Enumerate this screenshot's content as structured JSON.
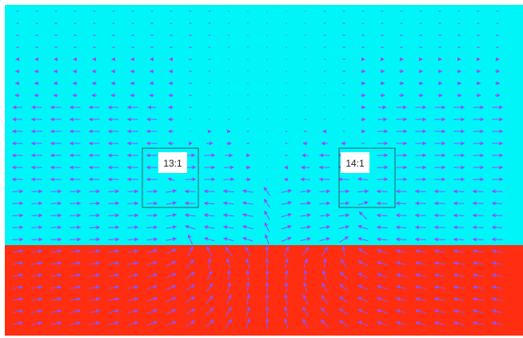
{
  "diagram": {
    "type": "vector-field",
    "colors": {
      "upper_region": "#00f5f8",
      "lower_region": "#ff2e10",
      "arrows": "#8c52ff",
      "frame": "#2c5f66",
      "tag_background": "#ffffff",
      "tag_text": "#222222"
    },
    "regions": [
      {
        "name": "upper-region"
      },
      {
        "name": "lower-region"
      }
    ],
    "tags": [
      {
        "label": "13:1"
      },
      {
        "label": "14:1"
      }
    ]
  }
}
